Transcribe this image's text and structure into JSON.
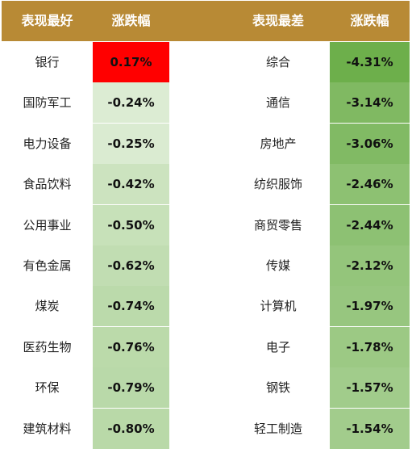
{
  "chart_data": {
    "type": "table",
    "columns": [
      "表现最好",
      "涨跌幅",
      "表现最差",
      "涨跌幅"
    ],
    "best": [
      {
        "name": "银行",
        "value": "0.17%",
        "pct": 0.17
      },
      {
        "name": "国防军工",
        "value": "-0.24%",
        "pct": -0.24
      },
      {
        "name": "电力设备",
        "value": "-0.25%",
        "pct": -0.25
      },
      {
        "name": "食品饮料",
        "value": "-0.42%",
        "pct": -0.42
      },
      {
        "name": "公用事业",
        "value": "-0.50%",
        "pct": -0.5
      },
      {
        "name": "有色金属",
        "value": "-0.62%",
        "pct": -0.62
      },
      {
        "name": "煤炭",
        "value": "-0.74%",
        "pct": -0.74
      },
      {
        "name": "医药生物",
        "value": "-0.76%",
        "pct": -0.76
      },
      {
        "name": "环保",
        "value": "-0.79%",
        "pct": -0.79
      },
      {
        "name": "建筑材料",
        "value": "-0.80%",
        "pct": -0.8
      }
    ],
    "worst": [
      {
        "name": "综合",
        "value": "-4.31%",
        "pct": -4.31
      },
      {
        "name": "通信",
        "value": "-3.14%",
        "pct": -3.14
      },
      {
        "name": "房地产",
        "value": "-3.06%",
        "pct": -3.06
      },
      {
        "name": "纺织服饰",
        "value": "-2.46%",
        "pct": -2.46
      },
      {
        "name": "商贸零售",
        "value": "-2.44%",
        "pct": -2.44
      },
      {
        "name": "传媒",
        "value": "-2.12%",
        "pct": -2.12
      },
      {
        "name": "计算机",
        "value": "-1.97%",
        "pct": -1.97
      },
      {
        "name": "电子",
        "value": "-1.78%",
        "pct": -1.78
      },
      {
        "name": "钢铁",
        "value": "-1.57%",
        "pct": -1.57
      },
      {
        "name": "轻工制造",
        "value": "-1.54%",
        "pct": -1.54
      }
    ]
  },
  "colors": {
    "header_bg": "#b88a35",
    "header_text": "#ffffff",
    "positive": "#ff0000",
    "negative_light": "#e8f3e2",
    "negative_dark": "#6daf4b"
  }
}
